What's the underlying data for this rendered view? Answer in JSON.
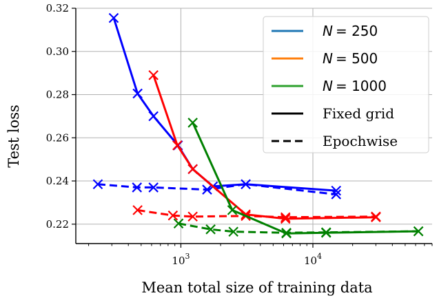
{
  "chart_data": {
    "type": "line",
    "title": "",
    "xlabel": "Mean total size of training data",
    "ylabel": "Test loss",
    "xscale": "log",
    "xlim": [
      160,
      80000
    ],
    "ylim": [
      0.211,
      0.32
    ],
    "grid": true,
    "legend_position": "upper right",
    "x_ticks": [
      {
        "base": "10",
        "exp": "3"
      },
      {
        "base": "10",
        "exp": "4"
      }
    ],
    "y_ticks": [
      "0.22",
      "0.24",
      "0.26",
      "0.28",
      "0.30",
      "0.32"
    ],
    "legend": {
      "colors": [
        {
          "label_prefix": "N",
          "label_value": "= 250",
          "color": "#1f77b4"
        },
        {
          "label_prefix": "N",
          "label_value": "= 500",
          "color": "#ff7f0e"
        },
        {
          "label_prefix": "N",
          "label_value": "= 1000",
          "color": "#2ca02c"
        }
      ],
      "styles": [
        {
          "label": "Fixed grid",
          "dash": "solid"
        },
        {
          "label": "Epochwise",
          "dash": "dashed"
        }
      ]
    },
    "series": [
      {
        "color": "#0000ff",
        "dash": "solid",
        "x": [
          310,
          470,
          620,
          950,
          1230,
          1750,
          3100,
          15000
        ],
        "y": [
          0.3155,
          0.2805,
          0.27,
          0.2565,
          0.2455,
          0.2375,
          0.2385,
          0.2355
        ]
      },
      {
        "color": "#0000ff",
        "dash": "dashed",
        "x": [
          235,
          465,
          620,
          1580,
          3100,
          15000
        ],
        "y": [
          0.2385,
          0.237,
          0.237,
          0.236,
          0.2385,
          0.2338
        ]
      },
      {
        "color": "#ff0000",
        "dash": "solid",
        "x": [
          620,
          940,
          1230,
          3100,
          6200,
          30000
        ],
        "y": [
          0.289,
          0.2565,
          0.2455,
          0.2245,
          0.2225,
          0.2232
        ]
      },
      {
        "color": "#ff0000",
        "dash": "dashed",
        "x": [
          470,
          870,
          1230,
          3100,
          6200,
          30000
        ],
        "y": [
          0.2265,
          0.224,
          0.2235,
          0.2238,
          0.2232,
          0.2235
        ]
      },
      {
        "color": "#008000",
        "dash": "solid",
        "x": [
          1230,
          2450,
          6300,
          12600,
          63000
        ],
        "y": [
          0.267,
          0.2265,
          0.2157,
          0.216,
          0.2167
        ]
      },
      {
        "color": "#008000",
        "dash": "dashed",
        "x": [
          960,
          1680,
          2500,
          6300,
          12600,
          63000
        ],
        "y": [
          0.2203,
          0.2176,
          0.2165,
          0.216,
          0.2162,
          0.2167
        ]
      }
    ]
  }
}
